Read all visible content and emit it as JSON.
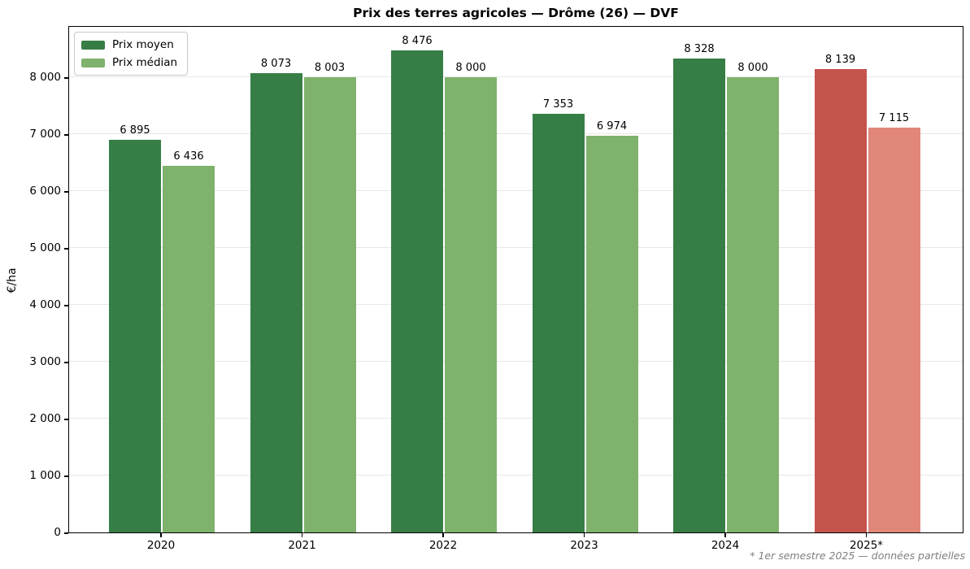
{
  "title": "Prix des terres agricoles — Drôme (26) — DVF",
  "footnote": "* 1er semestre 2025 — données partielles",
  "legend": {
    "entries": [
      {
        "label": "Prix moyen",
        "color": "#377e46"
      },
      {
        "label": "Prix médian",
        "color": "#7fb26c"
      }
    ]
  },
  "chart_data": {
    "type": "bar",
    "title": "Prix des terres agricoles — Drôme (26) — DVF",
    "xlabel": "",
    "ylabel": "€/ha",
    "categories": [
      "2020",
      "2021",
      "2022",
      "2023",
      "2024",
      "2025*"
    ],
    "series": [
      {
        "name": "Prix moyen",
        "color": "#377e46",
        "partial_color": "#c4544c",
        "values": [
          6895,
          8073,
          8476,
          7353,
          8328,
          8139
        ]
      },
      {
        "name": "Prix médian",
        "color": "#7fb26c",
        "partial_color": "#e0877a",
        "values": [
          6436,
          8003,
          8000,
          6974,
          8000,
          7115
        ]
      }
    ],
    "partial_categories": [
      "2025*"
    ],
    "value_labels": true,
    "ylim": [
      0,
      8914
    ],
    "ytick_step": 1000,
    "ytick_labels": [
      "0",
      "1 000",
      "2 000",
      "3 000",
      "4 000",
      "5 000",
      "6 000",
      "7 000",
      "8 000"
    ],
    "grid": "horizontal",
    "legend_position": "upper left",
    "thousands_separator": " "
  }
}
